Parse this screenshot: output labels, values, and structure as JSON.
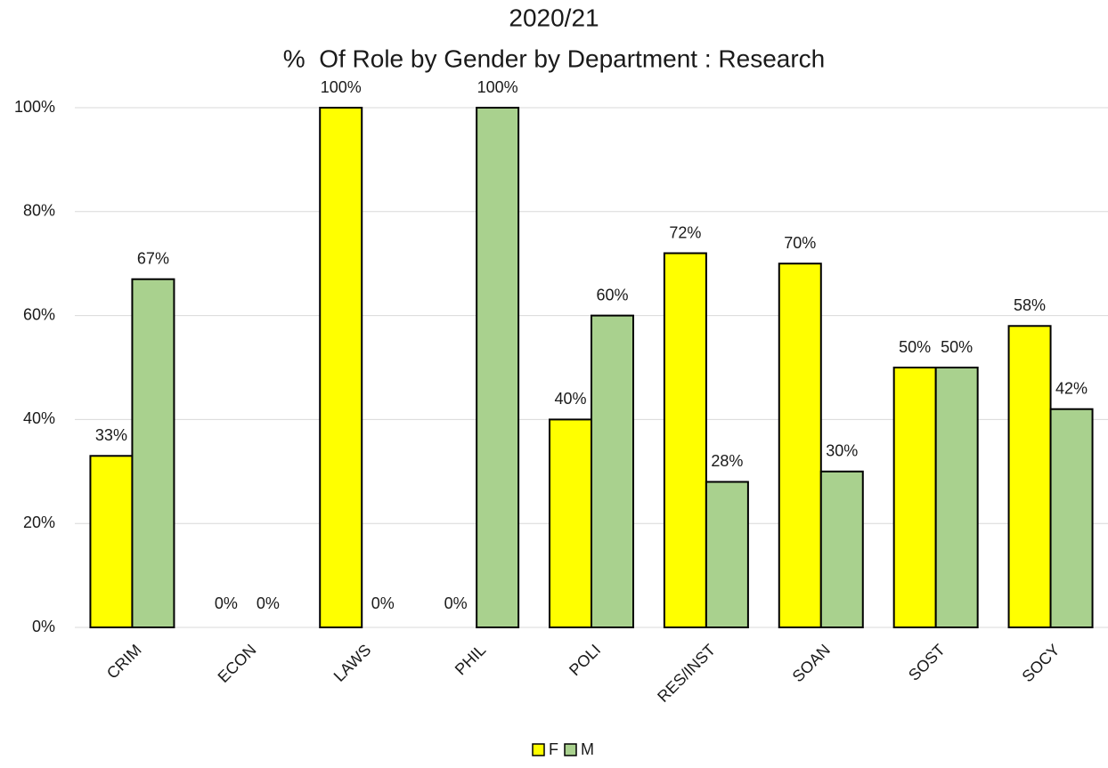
{
  "chart_data": {
    "type": "bar",
    "title": "2020/21",
    "subtitle": "%  Of Role by Gender by Department : Research",
    "categories": [
      "CRIM",
      "ECON",
      "LAWS",
      "PHIL",
      "POLI",
      "RES/INST",
      "SOAN",
      "SOST",
      "SOCY"
    ],
    "series": [
      {
        "name": "F",
        "color": "#ffff00",
        "values": [
          33,
          0,
          100,
          0,
          40,
          72,
          70,
          50,
          58
        ],
        "value_labels": [
          "33%",
          "0%",
          "100%",
          "0%",
          "40%",
          "72%",
          "70%",
          "50%",
          "58%"
        ]
      },
      {
        "name": "M",
        "color": "#a9d18e",
        "values": [
          67,
          0,
          0,
          100,
          60,
          28,
          30,
          50,
          42
        ],
        "value_labels": [
          "67%",
          "0%",
          "0%",
          "100%",
          "60%",
          "28%",
          "30%",
          "50%",
          "42%"
        ]
      }
    ],
    "ylim": [
      0,
      100
    ],
    "yticks": [
      {
        "value": 0,
        "label": "0%"
      },
      {
        "value": 20,
        "label": "20%"
      },
      {
        "value": 40,
        "label": "40%"
      },
      {
        "value": 60,
        "label": "60%"
      },
      {
        "value": 80,
        "label": "80%"
      },
      {
        "value": 100,
        "label": "100%"
      }
    ],
    "grid": true,
    "legend": "bottom"
  }
}
